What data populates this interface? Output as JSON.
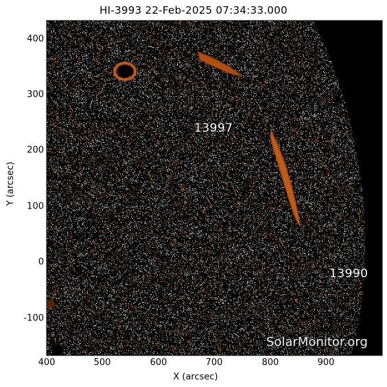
{
  "title": "HI-3993 22-Feb-2025 07:34:33.000",
  "axes": {
    "xlabel": "X (arcsec)",
    "ylabel": "Y (arcsec)",
    "xticks": [
      "400",
      "500",
      "600",
      "700",
      "800",
      "900"
    ],
    "yticks": [
      "400",
      "300",
      "200",
      "100",
      "0",
      "-100"
    ],
    "xrange": [
      400,
      1000
    ],
    "yrange": [
      -165,
      435
    ]
  },
  "regions": [
    {
      "id": "region-3997",
      "label": "13997"
    },
    {
      "id": "region-3990",
      "label": "13990"
    }
  ],
  "watermark": "SolarMonitor.org",
  "colors": {
    "orange": "#f08a3a",
    "dark_orange": "#b84f10",
    "space": "#000000",
    "background": "#fff8f0"
  }
}
